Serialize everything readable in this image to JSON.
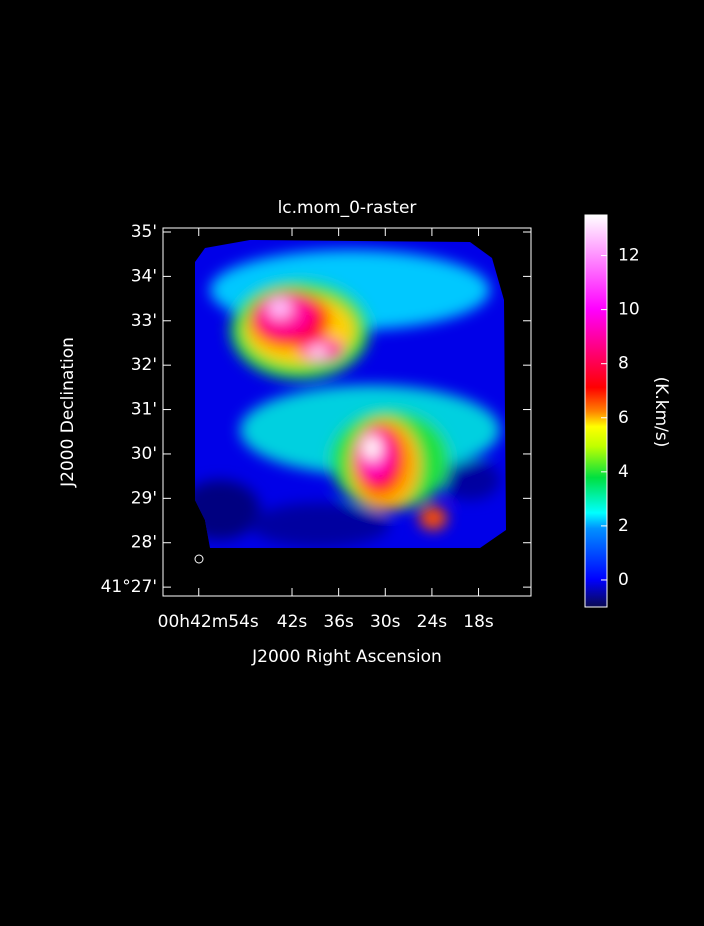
{
  "chart_data": {
    "type": "image",
    "title": "lc.mom_0-raster",
    "x_label": "J2000 Right Ascension",
    "y_label": "J2000 Declination",
    "xlim": [
      58.6,
      11.25
    ],
    "xticks": [
      {
        "value": 54,
        "label": "00h42m54s"
      },
      {
        "value": 42,
        "label": "42s"
      },
      {
        "value": 36,
        "label": "36s"
      },
      {
        "value": 30,
        "label": "30s"
      },
      {
        "value": 24,
        "label": "24s"
      },
      {
        "value": 18,
        "label": "18s"
      }
    ],
    "ylim": [
      26.8,
      35.09
    ],
    "yticks": [
      {
        "value": 35,
        "label": "35'"
      },
      {
        "value": 34,
        "label": "34'"
      },
      {
        "value": 33,
        "label": "33'"
      },
      {
        "value": 32,
        "label": "32'"
      },
      {
        "value": 31,
        "label": "31'"
      },
      {
        "value": 30,
        "label": "30'"
      },
      {
        "value": 29,
        "label": "29'"
      },
      {
        "value": 28,
        "label": "28'"
      },
      {
        "value": 27,
        "label": "41°27'"
      }
    ],
    "colorbar": {
      "label": "(K.km/s)",
      "lim": [
        -1,
        13.5
      ],
      "ticks": [
        0,
        2,
        4,
        6,
        8,
        10,
        12
      ]
    }
  }
}
